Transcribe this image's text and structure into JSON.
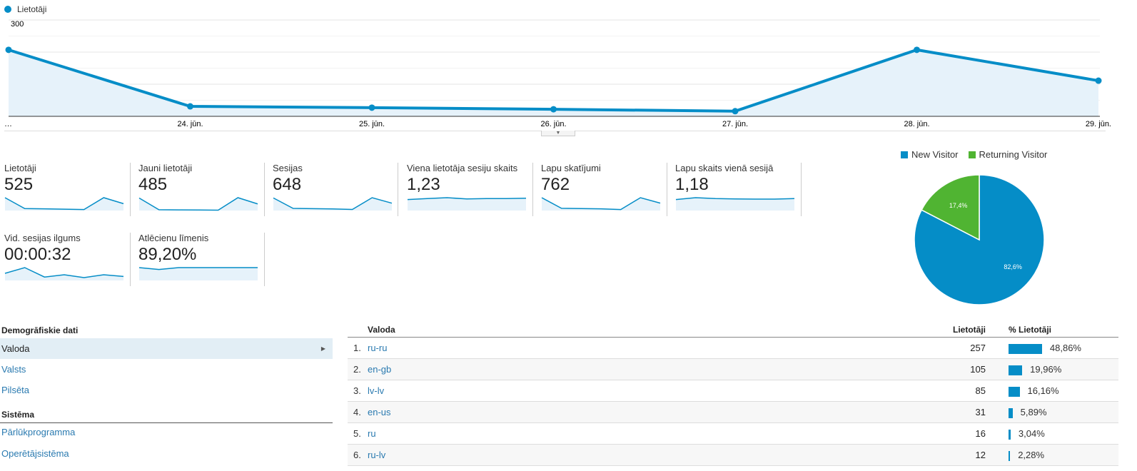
{
  "main_chart": {
    "legend": "Lietotāji",
    "color": "#058dc7",
    "chart_data": {
      "type": "area",
      "x": [
        "…",
        "24. jūn.",
        "25. jūn.",
        "26. jūn.",
        "27. jūn.",
        "28. jūn.",
        "29. jūn."
      ],
      "series": [
        {
          "name": "Lietotāji",
          "values": [
            207,
            31,
            27,
            22,
            16,
            207,
            111
          ]
        }
      ],
      "yticks": [
        "100",
        "200",
        "300"
      ],
      "ylim": [
        0,
        300
      ],
      "grid": true
    }
  },
  "metrics": [
    {
      "label": "Lietotāji",
      "value": "525",
      "spark": [
        207,
        31,
        27,
        22,
        16,
        207,
        111
      ]
    },
    {
      "label": "Jauni lietotāji",
      "value": "485",
      "spark": [
        190,
        12,
        10,
        8,
        5,
        195,
        100
      ]
    },
    {
      "label": "Sesijas",
      "value": "648",
      "spark": [
        240,
        40,
        36,
        30,
        20,
        245,
        140
      ]
    },
    {
      "label": "Viena lietotāja sesiju skaits",
      "value": "1,23",
      "spark": [
        1.15,
        1.2,
        1.25,
        1.18,
        1.2,
        1.2,
        1.22
      ]
    },
    {
      "label": "Lapu skatījumi",
      "value": "762",
      "spark": [
        260,
        45,
        40,
        35,
        20,
        260,
        150
      ]
    },
    {
      "label": "Lapu skaits vienā sesijā",
      "value": "1,18",
      "spark": [
        1.15,
        1.25,
        1.2,
        1.18,
        1.17,
        1.17,
        1.2
      ]
    },
    {
      "label": "Vid. sesijas ilgums",
      "value": "00:00:32",
      "spark": [
        25,
        45,
        12,
        20,
        10,
        20,
        14
      ]
    },
    {
      "label": "Atlēcienu līmenis",
      "value": "89,20%",
      "spark": [
        90,
        82,
        90,
        90,
        90,
        90,
        90
      ]
    }
  ],
  "pie": {
    "chart_data": {
      "type": "pie",
      "legend": "top",
      "slices": [
        {
          "name": "New Visitor",
          "value": 82.6,
          "label": "82,6%",
          "color": "#058dc7"
        },
        {
          "name": "Returning Visitor",
          "value": 17.4,
          "label": "17,4%",
          "color": "#50b432"
        }
      ]
    }
  },
  "sidebar": {
    "section1": "Demogrāfiskie dati",
    "items1": [
      "Valoda",
      "Valsts",
      "Pilsēta"
    ],
    "section2": "Sistēma",
    "items2": [
      "Pārlūkprogramma",
      "Operētājsistēma"
    ],
    "arrow": "▶"
  },
  "table": {
    "headers": {
      "dim": "Valoda",
      "users": "Lietotāji",
      "pct": "% Lietotāji"
    },
    "rows": [
      {
        "n": "1.",
        "lang": "ru-ru",
        "users": "257",
        "pct": "48,86%",
        "frac": 48.86
      },
      {
        "n": "2.",
        "lang": "en-gb",
        "users": "105",
        "pct": "19,96%",
        "frac": 19.96
      },
      {
        "n": "3.",
        "lang": "lv-lv",
        "users": "85",
        "pct": "16,16%",
        "frac": 16.16
      },
      {
        "n": "4.",
        "lang": "en-us",
        "users": "31",
        "pct": "5,89%",
        "frac": 5.89
      },
      {
        "n": "5.",
        "lang": "ru",
        "users": "16",
        "pct": "3,04%",
        "frac": 3.04
      },
      {
        "n": "6.",
        "lang": "ru-lv",
        "users": "12",
        "pct": "2,28%",
        "frac": 2.28
      }
    ]
  }
}
